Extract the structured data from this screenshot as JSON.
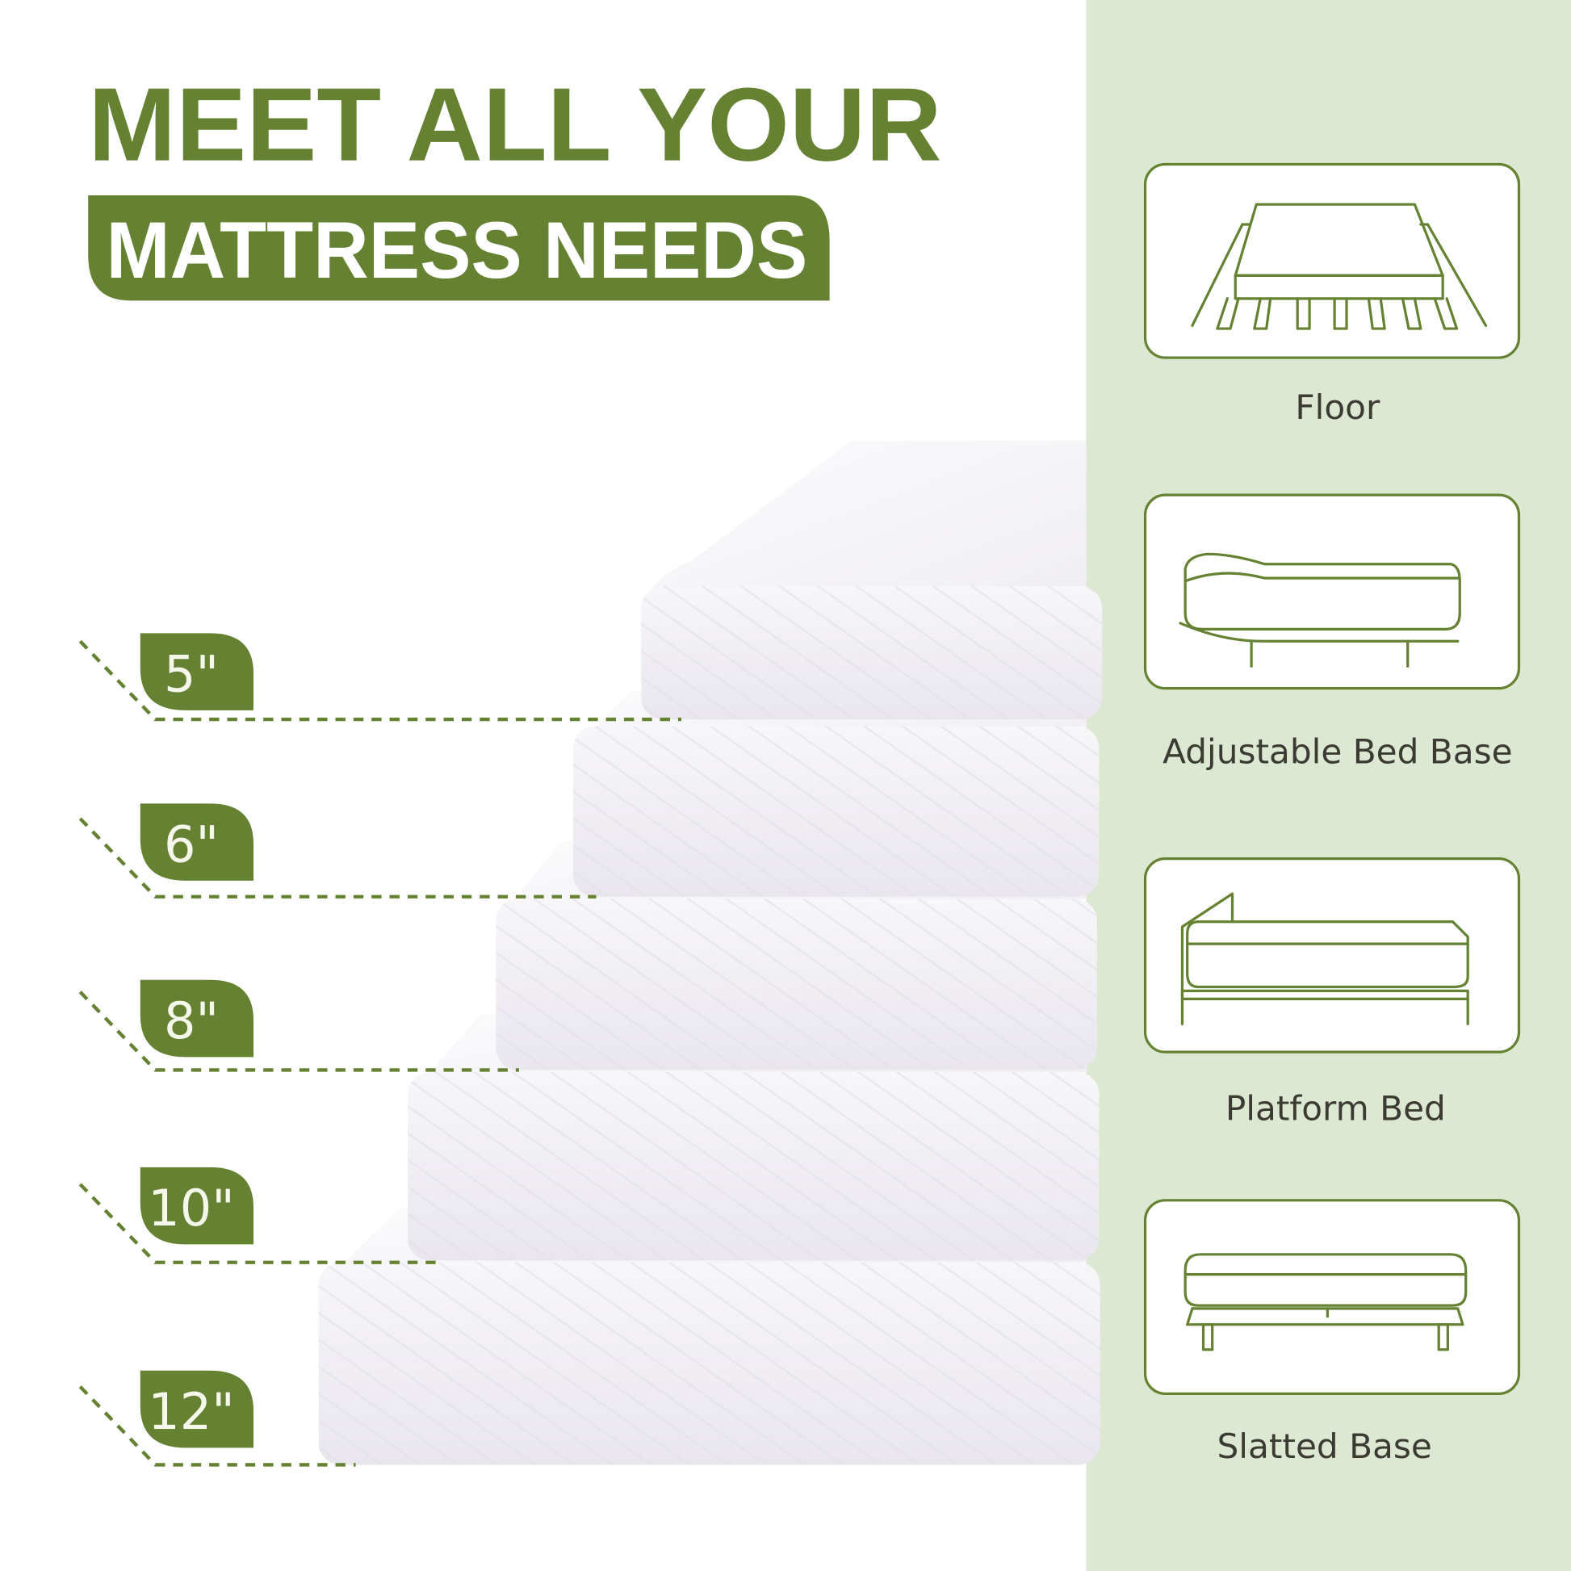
{
  "colors": {
    "brand_green": "#648231",
    "panel_bg": "#dce8d2",
    "label_text": "#3b3b33",
    "mattress": "#f1eff4"
  },
  "headline": {
    "line1": "MEET ALL YOUR",
    "line2": "MATTRESS NEEDS"
  },
  "thickness_labels": [
    "5\"",
    "6\"",
    "8\"",
    "10\"",
    "12\""
  ],
  "bed_types": [
    {
      "label": "Floor",
      "icon": "floor-mattress-icon"
    },
    {
      "label": "Adjustable Bed Base",
      "icon": "adjustable-bed-icon"
    },
    {
      "label": "Platform Bed",
      "icon": "platform-bed-icon"
    },
    {
      "label": "Slatted Base",
      "icon": "slatted-base-icon"
    }
  ]
}
